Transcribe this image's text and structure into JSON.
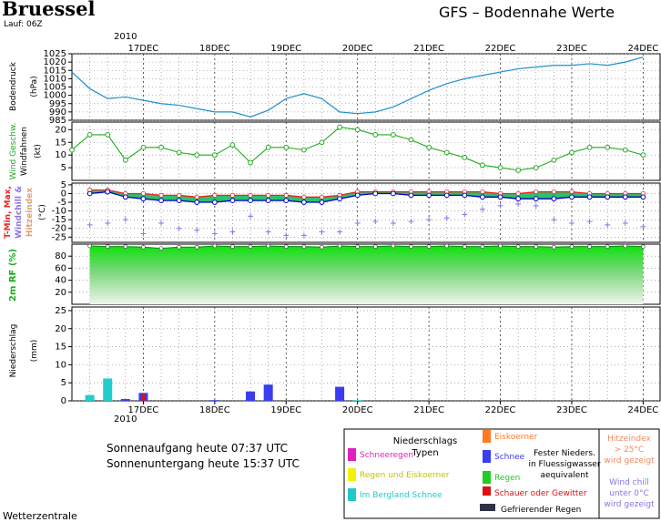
{
  "header": {
    "city": "Bruessel",
    "lauf": "Lauf: 06Z",
    "title": "GFS – Bodennahe Werte",
    "year_top": "2010",
    "year_bottom": "2010"
  },
  "sun": {
    "sunrise": "Sonnenaufgang heute 07:37 UTC",
    "sunset": "Sonnenuntergang heute 15:37 UTC"
  },
  "footer": "Wetterzentrale",
  "colors": {
    "pressure": "#1e90d0",
    "wind": "#22aa22",
    "tmax": "#ee2222",
    "tmin": "#0000cc",
    "windchill": "#8a74e8",
    "rh": "#19cc19",
    "precip_blue": "#3b3bf0",
    "precip_cyan": "#22cccc",
    "grid": "#000000"
  },
  "legend": {
    "title_line1": "Niederschlags",
    "title_line2": "Typen",
    "items": [
      {
        "label": "Schneeregen",
        "color": "#e020c0"
      },
      {
        "label": "Regen und Eiskoerner",
        "color": "#f2f200"
      },
      {
        "label": "Im Bergland Schnee",
        "color": "#20c8c8"
      },
      {
        "label": "Eiskoerner",
        "color": "#ff7a20"
      },
      {
        "label": "Schnee",
        "color": "#3b3bf0"
      },
      {
        "label": "Regen",
        "color": "#22cc22"
      },
      {
        "label": "Schauer oder Gewitter",
        "color": "#dd1111"
      },
      {
        "label": "Gefrierender Regen",
        "color": "#303048"
      }
    ],
    "fester_lines": [
      "Fester Nieders.",
      "in Fluessigwasser",
      "aequivalent"
    ],
    "hitze_lines": [
      "Hitzeindex",
      "> 25°C",
      "wird gezeigt"
    ],
    "chill_lines": [
      "Wind chill",
      "unter 0°C",
      "wird gezeigt"
    ]
  },
  "chart_data": [
    {
      "type": "line",
      "name": "pressure",
      "ylabel_lines": [
        "Bodendruck",
        "(hPa)"
      ],
      "ylim": [
        985,
        1025
      ],
      "yticks": [
        985,
        990,
        995,
        1000,
        1005,
        1010,
        1015,
        1020,
        1025
      ],
      "x_days": [
        0,
        0.25,
        0.5,
        0.75,
        1.0,
        1.25,
        1.5,
        1.75,
        2.0,
        2.25,
        2.5,
        2.75,
        3.0,
        3.25,
        3.5,
        3.75,
        4.0,
        4.25,
        4.5,
        4.75,
        5.0,
        5.25,
        5.5,
        5.75,
        6.0,
        6.25,
        6.5,
        6.75,
        7.0,
        7.25,
        7.5,
        7.75,
        8.0
      ],
      "values": [
        1014,
        1004,
        998,
        999,
        997,
        995,
        994,
        992,
        990,
        990,
        987,
        991,
        998,
        1001,
        998,
        990,
        989,
        990,
        993,
        998,
        1003,
        1007,
        1010,
        1012,
        1014,
        1016,
        1017,
        1018,
        1018,
        1019,
        1018,
        1020,
        1023
      ]
    },
    {
      "type": "line",
      "name": "wind",
      "ylabel_lines": [
        "Wind Geschw.",
        "Windfahnen",
        "(kt)"
      ],
      "ylim": [
        0,
        23
      ],
      "yticks": [
        5,
        10,
        15,
        20
      ],
      "x_days": [
        0,
        0.25,
        0.5,
        0.75,
        1.0,
        1.25,
        1.5,
        1.75,
        2.0,
        2.25,
        2.5,
        2.75,
        3.0,
        3.25,
        3.5,
        3.75,
        4.0,
        4.25,
        4.5,
        4.75,
        5.0,
        5.25,
        5.5,
        5.75,
        6.0,
        6.25,
        6.5,
        6.75,
        7.0,
        7.25,
        7.5,
        7.75,
        8.0
      ],
      "values": [
        12,
        18,
        18,
        8,
        13,
        13,
        11,
        10,
        10,
        14,
        7,
        13,
        13,
        12,
        15,
        21,
        20,
        18,
        18,
        16,
        13,
        11,
        9,
        6,
        5,
        4,
        5,
        8,
        11,
        13,
        13,
        12,
        10
      ]
    },
    {
      "type": "line",
      "name": "temperature",
      "ylabel_parts": [
        "T-Min, Max,",
        "Windchill &",
        "Hitzeindex",
        "(°C)"
      ],
      "ylim": [
        -28,
        6
      ],
      "yticks": [
        5,
        0,
        -5,
        -10,
        -15,
        -20,
        -25
      ],
      "x_days": [
        0.25,
        0.5,
        0.75,
        1.0,
        1.25,
        1.5,
        1.75,
        2.0,
        2.25,
        2.5,
        2.75,
        3.0,
        3.25,
        3.5,
        3.75,
        4.0,
        4.25,
        4.5,
        4.75,
        5.0,
        5.25,
        5.5,
        5.75,
        6.0,
        6.25,
        6.5,
        6.75,
        7.0,
        7.25,
        7.5,
        7.75,
        8.0
      ],
      "series": [
        {
          "name": "T-Max",
          "values": [
            2,
            2,
            0,
            0,
            -1,
            -1,
            -2,
            -1,
            -1,
            -1,
            -1,
            -1,
            -2,
            -2,
            -1,
            1,
            1,
            1,
            1,
            1,
            1,
            1,
            1,
            0,
            0,
            1,
            1,
            1,
            0,
            0,
            0,
            0
          ]
        },
        {
          "name": "T-Min",
          "values": [
            0,
            1,
            -2,
            -3,
            -4,
            -4,
            -5,
            -5,
            -4,
            -4,
            -4,
            -4,
            -5,
            -5,
            -3,
            -1,
            0,
            0,
            -1,
            -1,
            -1,
            -1,
            -2,
            -2,
            -3,
            -3,
            -3,
            -2,
            -2,
            -2,
            -2,
            -2
          ]
        },
        {
          "name": "Windchill",
          "values": [
            -18,
            -17,
            -15,
            -23,
            -17,
            -20,
            -21,
            -23,
            -22,
            -13,
            -22,
            -24,
            -24,
            -22,
            -22,
            -17,
            -16,
            -17,
            -16,
            -15,
            -14,
            -12,
            -9,
            -7,
            -6,
            -7,
            -15,
            -17,
            -16,
            -18,
            -17,
            -19
          ]
        }
      ]
    },
    {
      "type": "area",
      "name": "humidity",
      "ylabel": "2m RF (%)",
      "ylim": [
        0,
        100
      ],
      "yticks": [
        20,
        40,
        60,
        80
      ],
      "x_days": [
        0.25,
        0.5,
        0.75,
        1.0,
        1.25,
        1.5,
        1.75,
        2.0,
        2.25,
        2.5,
        2.75,
        3.0,
        3.25,
        3.5,
        3.75,
        4.0,
        4.25,
        4.5,
        4.75,
        5.0,
        5.25,
        5.5,
        5.75,
        6.0,
        6.25,
        6.5,
        6.75,
        7.0,
        7.25,
        7.5,
        7.75,
        8.0
      ],
      "values": [
        97,
        96,
        96,
        95,
        93,
        95,
        95,
        97,
        96,
        96,
        97,
        96,
        96,
        95,
        97,
        96,
        96,
        97,
        96,
        96,
        97,
        96,
        96,
        97,
        96,
        96,
        95,
        96,
        96,
        96,
        97,
        96
      ]
    },
    {
      "type": "bar",
      "name": "precipitation",
      "ylabel_lines": [
        "Niederschlag",
        "(mm)"
      ],
      "ylim": [
        0,
        26
      ],
      "yticks": [
        0,
        5,
        10,
        15,
        20,
        25
      ],
      "x_days": [
        0.25,
        0.5,
        0.75,
        1.0,
        1.25,
        1.5,
        1.75,
        2.0,
        2.25,
        2.5,
        2.75,
        3.0,
        3.25,
        3.5,
        3.75,
        4.0,
        4.25,
        4.5,
        4.75,
        5.0,
        5.25,
        5.5,
        5.75,
        6.0,
        6.25,
        6.5,
        6.75,
        7.0,
        7.25,
        7.5,
        7.75,
        8.0
      ],
      "values": [
        1.6,
        6.2,
        0.5,
        2.2,
        0,
        0,
        0,
        0.2,
        0,
        2.6,
        4.5,
        0,
        0,
        0,
        3.9,
        0.2,
        0,
        0,
        0,
        0,
        0,
        0,
        0,
        0,
        0,
        0,
        0,
        0,
        0,
        0,
        0,
        0
      ],
      "types": [
        "cyan",
        "cyan",
        "blue",
        "blue",
        "",
        "",
        "",
        "blue",
        "",
        "blue",
        "blue",
        "",
        "",
        "",
        "blue",
        "cyan",
        "",
        "",
        "",
        "",
        "",
        "",
        "",
        "",
        "",
        "",
        "",
        "",
        "",
        "",
        "",
        ""
      ],
      "shower_days": [
        1.0
      ]
    }
  ],
  "x_axis": {
    "day_labels": [
      "17DEC",
      "18DEC",
      "19DEC",
      "20DEC",
      "21DEC",
      "22DEC",
      "23DEC",
      "24DEC"
    ],
    "day_positions": [
      1,
      2,
      3,
      4,
      5,
      6,
      7,
      8
    ]
  }
}
